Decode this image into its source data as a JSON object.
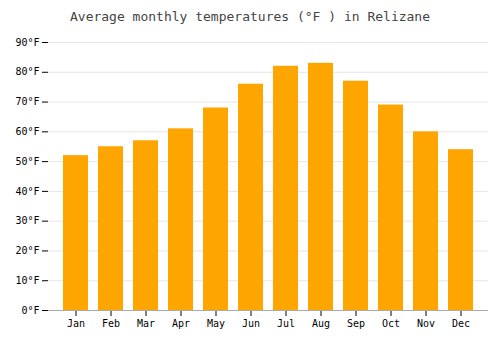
{
  "chart_data": {
    "type": "bar",
    "title": "Average monthly temperatures (°F ) in Relizane",
    "categories": [
      "Jan",
      "Feb",
      "Mar",
      "Apr",
      "May",
      "Jun",
      "Jul",
      "Aug",
      "Sep",
      "Oct",
      "Nov",
      "Dec"
    ],
    "values": [
      52,
      55,
      57,
      61,
      68,
      76,
      82,
      83,
      77,
      69,
      60,
      54
    ],
    "color": "#FFA500",
    "ylim": [
      0,
      90
    ],
    "yticks": [
      {
        "value": 0,
        "label": "0°F"
      },
      {
        "value": 10,
        "label": "10°F"
      },
      {
        "value": 20,
        "label": "20°F"
      },
      {
        "value": 30,
        "label": "30°F"
      },
      {
        "value": 40,
        "label": "40°F"
      },
      {
        "value": 50,
        "label": "50°F"
      },
      {
        "value": 60,
        "label": "60°F"
      },
      {
        "value": 70,
        "label": "70°F"
      },
      {
        "value": 80,
        "label": "80°F"
      },
      {
        "value": 90,
        "label": "90°F"
      }
    ],
    "grid": true
  }
}
